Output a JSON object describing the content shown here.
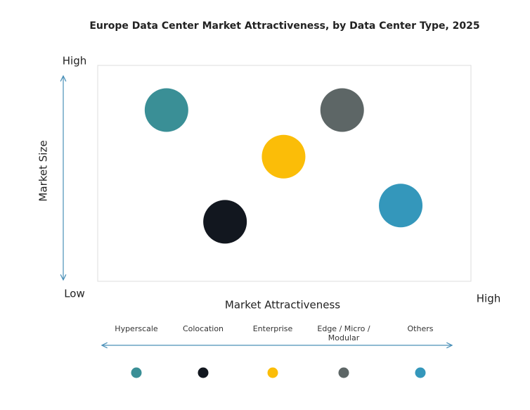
{
  "chart_data": {
    "type": "scatter",
    "title": "Europe Data Center Market Attractiveness,  by Data Center Type, 2025",
    "x_label": "Market Attractiveness",
    "y_label": "Market Size",
    "xlim": [
      0,
      10
    ],
    "ylim": [
      0,
      10
    ],
    "xticks": [
      {
        "value": 10,
        "label": "High"
      }
    ],
    "yticks": [
      {
        "value": 0,
        "label": "Low"
      },
      {
        "value": 10,
        "label": "High"
      }
    ],
    "grid": false,
    "legend": "bottom",
    "series": [
      {
        "name": "Hyperscale",
        "color": "#3a8f96",
        "x": [
          2.3
        ],
        "values": [
          7.9
        ]
      },
      {
        "name": "Colocation",
        "color": "#12171f",
        "x": [
          3.7
        ],
        "values": [
          3.1
        ]
      },
      {
        "name": "Enterprise",
        "color": "#fbbd08",
        "x": [
          5.1
        ],
        "values": [
          5.9
        ]
      },
      {
        "name": "Edge / Micro / Modular",
        "color": "#5d6666",
        "x": [
          6.5
        ],
        "values": [
          7.9
        ]
      },
      {
        "name": "Others",
        "color": "#3497bb",
        "x": [
          7.9
        ],
        "values": [
          3.8
        ]
      }
    ]
  }
}
